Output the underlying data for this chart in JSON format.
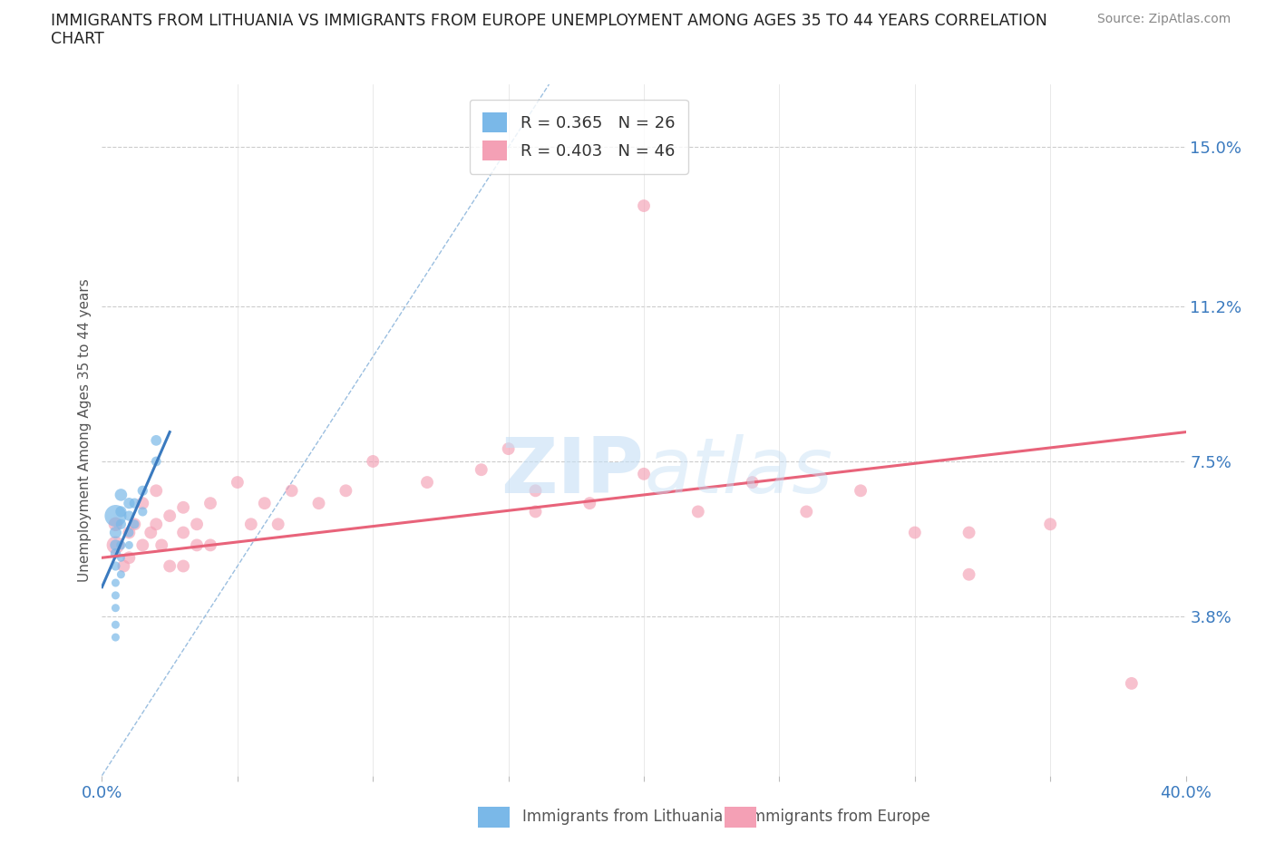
{
  "title_line1": "IMMIGRANTS FROM LITHUANIA VS IMMIGRANTS FROM EUROPE UNEMPLOYMENT AMONG AGES 35 TO 44 YEARS CORRELATION",
  "title_line2": "CHART",
  "source": "Source: ZipAtlas.com",
  "ylabel": "Unemployment Among Ages 35 to 44 years",
  "xlim": [
    0.0,
    0.4
  ],
  "ylim": [
    0.0,
    0.165
  ],
  "xticks": [
    0.0,
    0.05,
    0.1,
    0.15,
    0.2,
    0.25,
    0.3,
    0.35,
    0.4
  ],
  "ytick_positions": [
    0.038,
    0.075,
    0.112,
    0.15
  ],
  "ytick_labels": [
    "3.8%",
    "7.5%",
    "11.2%",
    "15.0%"
  ],
  "legend_R_lithuania": "R = 0.365",
  "legend_N_lithuania": "N = 26",
  "legend_R_europe": "R = 0.403",
  "legend_N_europe": "N = 46",
  "color_lithuania": "#7ab8e8",
  "color_europe": "#f4a0b5",
  "color_trendline_lithuania": "#3a7abf",
  "color_trendline_europe": "#e8637a",
  "color_refline": "#9bbfe0",
  "watermark_zip": "ZIP",
  "watermark_atlas": "atlas",
  "lithuania_x": [
    0.005,
    0.005,
    0.005,
    0.005,
    0.005,
    0.005,
    0.005,
    0.005,
    0.005,
    0.005,
    0.007,
    0.007,
    0.007,
    0.007,
    0.007,
    0.007,
    0.01,
    0.01,
    0.01,
    0.01,
    0.012,
    0.012,
    0.015,
    0.015,
    0.02,
    0.02
  ],
  "lithuania_y": [
    0.033,
    0.036,
    0.04,
    0.043,
    0.046,
    0.05,
    0.053,
    0.055,
    0.058,
    0.062,
    0.048,
    0.052,
    0.055,
    0.06,
    0.063,
    0.067,
    0.055,
    0.058,
    0.062,
    0.065,
    0.06,
    0.065,
    0.063,
    0.068,
    0.075,
    0.08
  ],
  "lithuania_sizes": [
    35,
    35,
    35,
    35,
    35,
    45,
    55,
    65,
    75,
    250,
    35,
    35,
    45,
    55,
    65,
    80,
    35,
    45,
    55,
    65,
    45,
    55,
    45,
    55,
    50,
    60
  ],
  "europe_x": [
    0.005,
    0.005,
    0.008,
    0.01,
    0.01,
    0.012,
    0.015,
    0.015,
    0.018,
    0.02,
    0.02,
    0.022,
    0.025,
    0.025,
    0.03,
    0.03,
    0.03,
    0.035,
    0.035,
    0.04,
    0.04,
    0.05,
    0.055,
    0.06,
    0.065,
    0.07,
    0.08,
    0.09,
    0.1,
    0.12,
    0.14,
    0.15,
    0.16,
    0.18,
    0.2,
    0.22,
    0.24,
    0.26,
    0.28,
    0.3,
    0.32,
    0.35,
    0.38,
    0.2,
    0.32,
    0.16
  ],
  "europe_y": [
    0.055,
    0.06,
    0.05,
    0.058,
    0.052,
    0.06,
    0.055,
    0.065,
    0.058,
    0.06,
    0.068,
    0.055,
    0.062,
    0.05,
    0.058,
    0.064,
    0.05,
    0.06,
    0.055,
    0.065,
    0.055,
    0.07,
    0.06,
    0.065,
    0.06,
    0.068,
    0.065,
    0.068,
    0.075,
    0.07,
    0.073,
    0.078,
    0.068,
    0.065,
    0.072,
    0.063,
    0.07,
    0.063,
    0.068,
    0.058,
    0.048,
    0.06,
    0.022,
    0.136,
    0.058,
    0.063
  ],
  "europe_sizes": [
    80,
    50,
    40,
    40,
    40,
    40,
    40,
    40,
    40,
    40,
    40,
    40,
    40,
    40,
    40,
    40,
    40,
    40,
    40,
    40,
    40,
    40,
    40,
    40,
    40,
    40,
    40,
    40,
    40,
    40,
    40,
    40,
    40,
    40,
    40,
    40,
    40,
    40,
    40,
    40,
    40,
    40,
    40,
    40,
    40,
    40
  ],
  "lith_trend_x": [
    0.0,
    0.025
  ],
  "lith_trend_y": [
    0.045,
    0.082
  ],
  "eur_trend_x": [
    0.0,
    0.4
  ],
  "eur_trend_y": [
    0.052,
    0.082
  ],
  "ref_line_x": [
    0.0,
    0.165
  ],
  "ref_line_y": [
    0.0,
    0.165
  ]
}
